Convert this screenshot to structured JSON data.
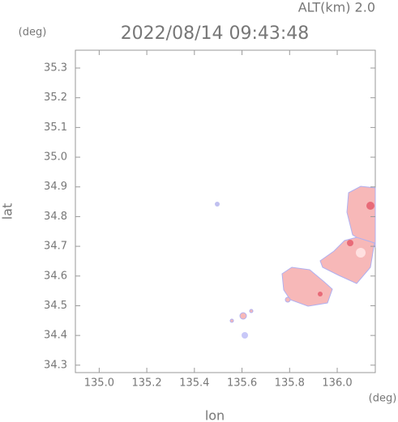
{
  "chart_data": {
    "type": "map",
    "title": "2022/08/14 09:43:48",
    "subtitle": "ALT(km) 2.0",
    "y_unit": "(deg)",
    "x_unit": "(deg)",
    "xlabel": "lon",
    "ylabel": "lat",
    "xlim": [
      134.9,
      136.16
    ],
    "ylim": [
      34.275,
      35.36
    ],
    "xticks": [
      {
        "value": 135,
        "label": "135.0"
      },
      135.2,
      135.4,
      135.6,
      135.8,
      {
        "value": 136,
        "label": "136.0"
      }
    ],
    "yticks": [
      34.3,
      34.4,
      34.5,
      34.6,
      34.7,
      34.8,
      34.9,
      {
        "value": 35,
        "label": "35.0"
      },
      35.1,
      35.2,
      35.3
    ]
  }
}
